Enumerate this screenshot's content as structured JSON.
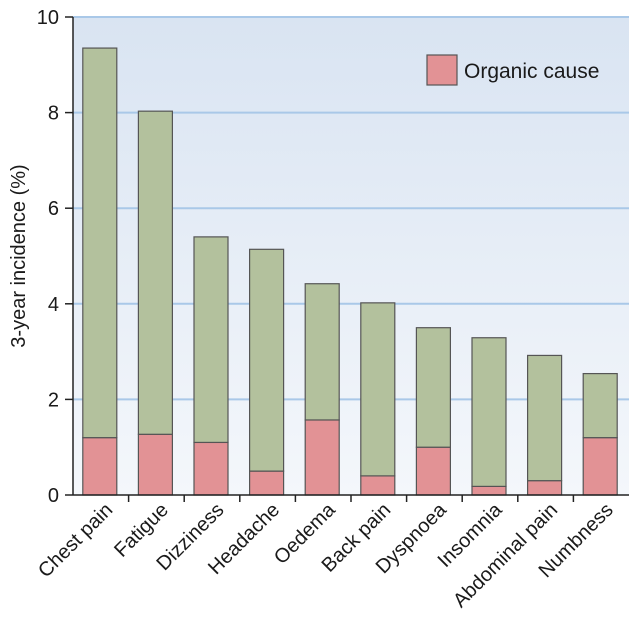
{
  "chart_data": {
    "type": "bar",
    "stacked": true,
    "title": "",
    "xlabel": "",
    "ylabel": "3-year incidence (%)",
    "ylim": [
      0,
      10
    ],
    "yticks": [
      "0",
      "2",
      "4",
      "6",
      "8",
      "10"
    ],
    "grid": "horizontal",
    "legend_position": "top-right",
    "categories": [
      "Chest pain",
      "Fatigue",
      "Dizziness",
      "Headache",
      "Oedema",
      "Back pain",
      "Dyspnoea",
      "Insomnia",
      "Abdominal pain",
      "Numbness"
    ],
    "series": [
      {
        "name": "Organic cause",
        "color": "#e29295",
        "values": [
          1.2,
          1.27,
          1.1,
          0.5,
          1.57,
          0.4,
          1.0,
          0.18,
          0.3,
          1.2
        ]
      },
      {
        "color": "#b3c19d",
        "values": [
          8.15,
          6.76,
          4.3,
          4.64,
          2.85,
          3.62,
          2.5,
          3.11,
          2.62,
          1.34
        ]
      }
    ],
    "totals": [
      9.35,
      8.03,
      5.4,
      5.14,
      4.42,
      4.02,
      3.5,
      3.29,
      2.92,
      2.54
    ],
    "colors": {
      "plot_bg": "#e5ecf6",
      "grid": "#a9c8e8",
      "bar_stroke": "#555555"
    }
  }
}
